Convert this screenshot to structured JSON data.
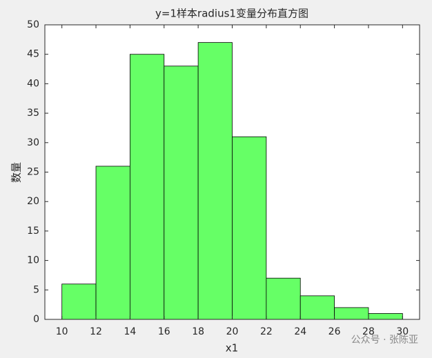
{
  "chart_data": {
    "type": "histogram",
    "title": "y=1样本radius1变量分布直方图",
    "x_label": "x1",
    "y_label": "数量",
    "bins": [
      10,
      12,
      14,
      16,
      18,
      20,
      22,
      24,
      26,
      28,
      30
    ],
    "counts": [
      6,
      26,
      45,
      43,
      47,
      31,
      7,
      4,
      2,
      1
    ],
    "color": "#66ff66",
    "xlim": [
      9,
      31
    ],
    "ylim": [
      0,
      50
    ],
    "xticks": [
      10,
      12,
      14,
      16,
      18,
      20,
      22,
      24,
      26,
      28,
      30
    ],
    "yticks": [
      0,
      5,
      10,
      15,
      20,
      25,
      30,
      35,
      40,
      45,
      50
    ]
  },
  "watermark": "公众号 · 张陈亚"
}
